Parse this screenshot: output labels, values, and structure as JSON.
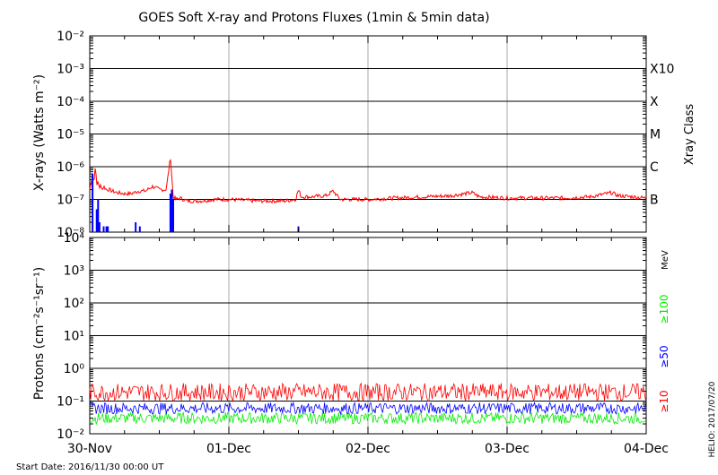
{
  "title": "GOES Soft X-ray and Protons Fluxes    (1min & 5min data)",
  "footer": {
    "start_date": "Start Date: 2016/11/30 00:00 UT",
    "stamp": "HELIO: 2017/07/20"
  },
  "colors": {
    "xray_long": "#ff0000",
    "xray_short": "#0000ff",
    "p10": "#ff0000",
    "p50": "#0000ff",
    "p100": "#00ee00",
    "axes": "#000000",
    "day_grid": "#aaaaaa"
  },
  "x_axis": {
    "ticks": [
      "30-Nov",
      "01-Dec",
      "02-Dec",
      "03-Dec",
      "04-Dec"
    ],
    "range_days": [
      0,
      4
    ]
  },
  "chart_data": [
    {
      "type": "line",
      "ylabel": "X-rays (Watts m⁻²)",
      "y_scale": "log",
      "ylim": [
        1e-08,
        0.01
      ],
      "y_tick_labels": [
        "10⁻⁸",
        "10⁻⁷",
        "10⁻⁶",
        "10⁻⁵",
        "10⁻⁴",
        "10⁻³",
        "10⁻²"
      ],
      "right_axis_label": "Xray Class",
      "class_labels": [
        {
          "label": "B",
          "level": 1e-07
        },
        {
          "label": "C",
          "level": 1e-06
        },
        {
          "label": "M",
          "level": 1e-05
        },
        {
          "label": "X",
          "level": 0.0001
        },
        {
          "label": "X10",
          "level": 0.001
        }
      ],
      "series": [
        {
          "color": "red",
          "x": [
            0.0,
            0.02,
            0.03,
            0.04,
            0.05,
            0.06,
            0.07,
            0.08,
            0.09,
            0.1,
            0.12,
            0.14,
            0.16,
            0.2,
            0.25,
            0.3,
            0.35,
            0.4,
            0.45,
            0.5,
            0.55,
            0.58,
            0.6,
            0.62,
            0.65,
            0.7,
            0.8,
            0.9,
            1.0,
            1.2,
            1.4,
            1.48,
            1.5,
            1.52,
            1.6,
            1.7,
            1.75,
            1.8,
            2.0,
            2.2,
            2.4,
            2.6,
            2.75,
            2.8,
            3.0,
            3.2,
            3.4,
            3.6,
            3.75,
            3.8,
            3.9,
            4.0
          ],
          "values": [
            2e-07,
            6e-07,
            3e-07,
            1.2e-06,
            2.5e-07,
            4e-07,
            2e-07,
            3e-07,
            2e-07,
            2.5e-07,
            2e-07,
            2e-07,
            1.8e-07,
            1.6e-07,
            1.5e-07,
            1.5e-07,
            1.8e-07,
            1.8e-07,
            2.5e-07,
            2e-07,
            2e-07,
            2e-06,
            1.2e-07,
            1e-07,
            1.1e-07,
            9e-08,
            9e-08,
            1e-07,
            1e-07,
            9e-08,
            9e-08,
            1e-07,
            2e-07,
            1.2e-07,
            1.2e-07,
            1.3e-07,
            1.8e-07,
            1e-07,
            1e-07,
            1.1e-07,
            1.2e-07,
            1.3e-07,
            1.6e-07,
            1.2e-07,
            1.1e-07,
            1.1e-07,
            1.1e-07,
            1.2e-07,
            1.6e-07,
            1.3e-07,
            1.2e-07,
            1.1e-07
          ]
        },
        {
          "color": "blue",
          "x": [
            0.02,
            0.05,
            0.06,
            0.07,
            0.1,
            0.12,
            0.13,
            0.33,
            0.36,
            0.58,
            0.59,
            0.6,
            1.5
          ],
          "values": [
            6e-07,
            5e-08,
            1e-07,
            2e-08,
            1.5e-08,
            1.5e-08,
            1.5e-08,
            2e-08,
            1.5e-08,
            1.5e-07,
            2e-07,
            1e-07,
            1.5e-08
          ]
        }
      ]
    },
    {
      "type": "line",
      "ylabel": "Protons (cm⁻²s⁻¹sr⁻¹)",
      "y_scale": "log",
      "ylim": [
        0.01,
        10000
      ],
      "y_tick_labels": [
        "10⁻²",
        "10⁻¹",
        "10⁰",
        "10¹",
        "10²",
        "10³",
        "10⁴"
      ],
      "threshold": 10,
      "right_axis_unit": "MeV",
      "series": [
        {
          "name": "≥10",
          "color": "red",
          "level": 0.15,
          "range": [
            0.1,
            0.35
          ]
        },
        {
          "name": "≥50",
          "color": "blue",
          "level": 0.06,
          "range": [
            0.04,
            0.09
          ]
        },
        {
          "name": "≥100",
          "color": "green",
          "level": 0.03,
          "range": [
            0.02,
            0.045
          ]
        }
      ]
    }
  ]
}
